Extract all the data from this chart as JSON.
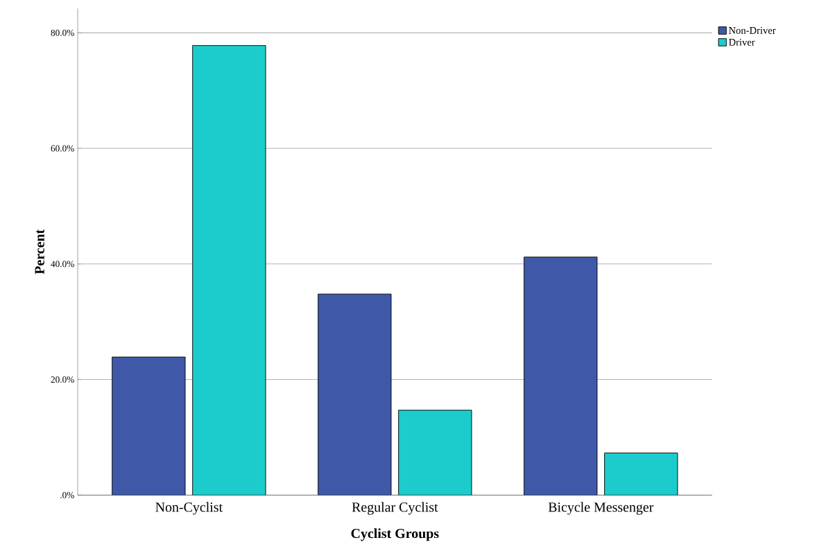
{
  "chart_data": {
    "type": "bar",
    "xlabel": "Cyclist Groups",
    "ylabel": "Percent",
    "categories": [
      "Non-Cyclist",
      "Regular Cyclist",
      "Bicycle Messenger"
    ],
    "series": [
      {
        "name": "Non-Driver",
        "color": "#3f59a8",
        "values": [
          23.9,
          34.8,
          41.2
        ]
      },
      {
        "name": "Driver",
        "color": "#1ccccc",
        "values": [
          77.8,
          14.7,
          7.3
        ]
      }
    ],
    "ylim": [
      0,
      84.2
    ],
    "yticks": [
      {
        "value": 0,
        "label": ".0%"
      },
      {
        "value": 20,
        "label": "20.0%"
      },
      {
        "value": 40,
        "label": "40.0%"
      },
      {
        "value": 60,
        "label": "60.0%"
      },
      {
        "value": 80,
        "label": "80.0%"
      }
    ],
    "grid": "y",
    "legend": "top right"
  }
}
